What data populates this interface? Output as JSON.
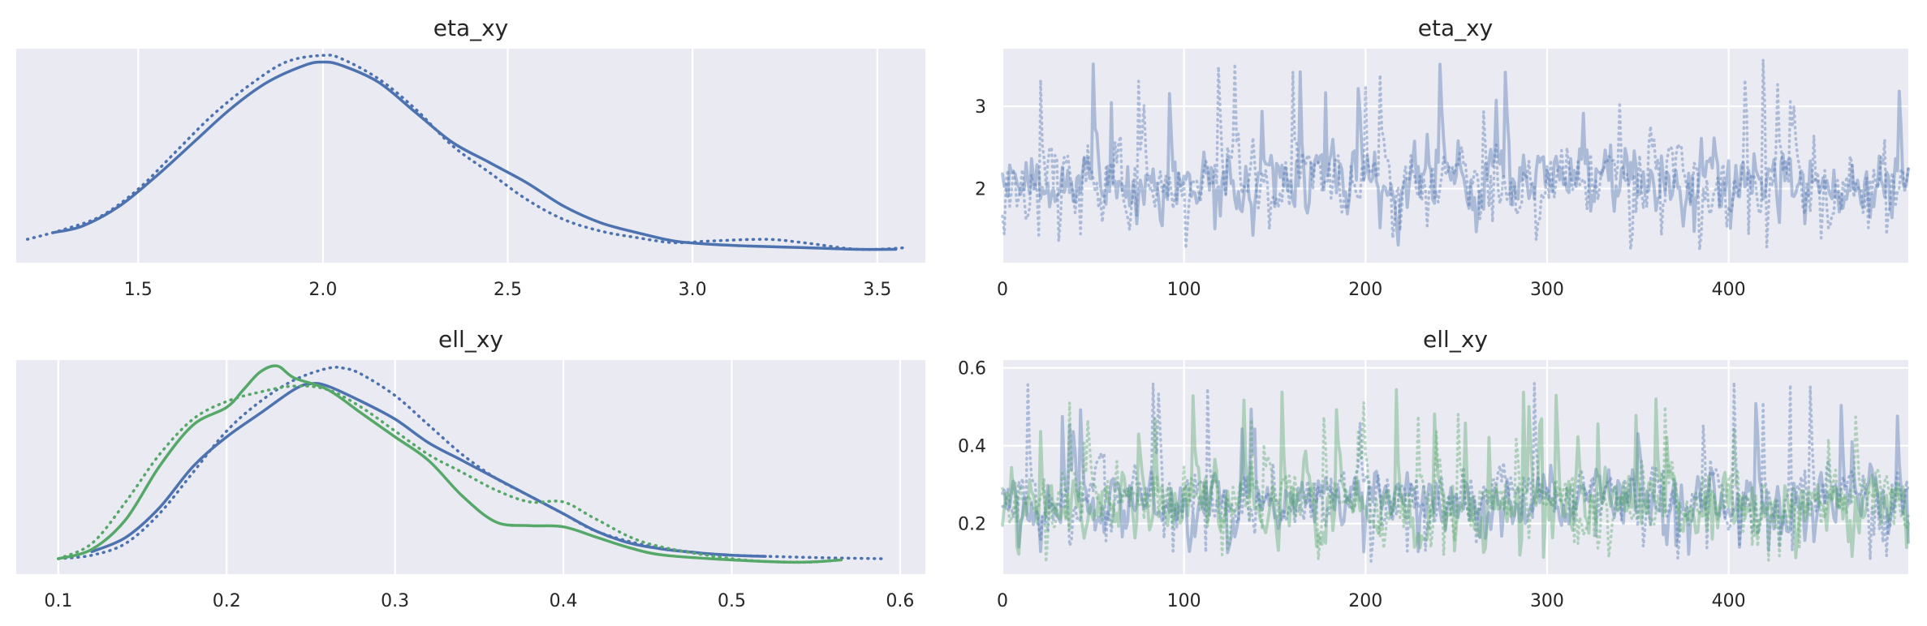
{
  "colors": {
    "blue": "#4c72b0",
    "green": "#55a868",
    "background": "#eaeaf2",
    "grid": "#ffffff"
  },
  "chart_data": [
    {
      "panel": "kde",
      "type": "line",
      "title": "eta_xy",
      "xlim": [
        1.17,
        3.63
      ],
      "ylim": [
        -0.02,
        0.62
      ],
      "xticks": [
        1.5,
        2.0,
        2.5,
        3.0,
        3.5
      ],
      "xtick_labels": [
        "1.5",
        "2.0",
        "2.5",
        "3.0",
        "3.5"
      ],
      "grid": true,
      "series": [
        {
          "color": "#4c72b0",
          "style": "solid",
          "x": [
            1.27,
            1.35,
            1.45,
            1.55,
            1.65,
            1.75,
            1.85,
            1.95,
            2.0,
            2.05,
            2.15,
            2.25,
            2.35,
            2.45,
            2.55,
            2.65,
            2.75,
            2.85,
            2.95,
            3.05,
            3.15,
            3.3,
            3.45,
            3.55
          ],
          "y": [
            0.07,
            0.09,
            0.15,
            0.24,
            0.34,
            0.44,
            0.52,
            0.57,
            0.58,
            0.57,
            0.52,
            0.43,
            0.34,
            0.28,
            0.22,
            0.15,
            0.1,
            0.07,
            0.045,
            0.035,
            0.03,
            0.025,
            0.02,
            0.02
          ]
        },
        {
          "color": "#4c72b0",
          "style": "dotted",
          "x": [
            1.2,
            1.3,
            1.4,
            1.5,
            1.6,
            1.7,
            1.8,
            1.9,
            2.0,
            2.05,
            2.15,
            2.25,
            2.35,
            2.45,
            2.55,
            2.65,
            2.75,
            2.85,
            2.95,
            3.05,
            3.2,
            3.3,
            3.45,
            3.58
          ],
          "y": [
            0.05,
            0.08,
            0.12,
            0.2,
            0.31,
            0.42,
            0.51,
            0.58,
            0.6,
            0.59,
            0.53,
            0.44,
            0.33,
            0.25,
            0.17,
            0.11,
            0.075,
            0.055,
            0.04,
            0.045,
            0.05,
            0.04,
            0.02,
            0.025
          ]
        }
      ]
    },
    {
      "panel": "trace",
      "type": "line",
      "title": "eta_xy",
      "xlim": [
        0,
        499
      ],
      "ylim": [
        1.1,
        3.7
      ],
      "xticks": [
        0,
        100,
        200,
        300,
        400
      ],
      "xtick_labels": [
        "0",
        "100",
        "200",
        "300",
        "400"
      ],
      "yticks": [
        2,
        3
      ],
      "ytick_labels": [
        "2",
        "3"
      ],
      "grid": true,
      "n_draws": 500,
      "chains": [
        {
          "color": "#4c72b0",
          "style": "solid",
          "mean": 2.1,
          "sd": 0.35,
          "min": 1.3,
          "max": 3.55,
          "seed": 11
        },
        {
          "color": "#4c72b0",
          "style": "dotted",
          "mean": 2.05,
          "sd": 0.38,
          "min": 1.25,
          "max": 3.6,
          "seed": 29
        }
      ]
    },
    {
      "panel": "kde",
      "type": "line",
      "title": "ell_xy",
      "xlim": [
        0.075,
        0.615
      ],
      "ylim": [
        -0.6,
        17.5
      ],
      "xticks": [
        0.1,
        0.2,
        0.3,
        0.4,
        0.5,
        0.6
      ],
      "xtick_labels": [
        "0.1",
        "0.2",
        "0.3",
        "0.4",
        "0.5",
        "0.6"
      ],
      "grid": true,
      "series": [
        {
          "color": "#4c72b0",
          "style": "solid",
          "x": [
            0.12,
            0.14,
            0.16,
            0.18,
            0.2,
            0.22,
            0.24,
            0.25,
            0.26,
            0.28,
            0.3,
            0.32,
            0.34,
            0.36,
            0.38,
            0.4,
            0.42,
            0.44,
            0.46,
            0.48,
            0.5,
            0.52
          ],
          "y": [
            1.3,
            2.5,
            5.0,
            8.5,
            11.0,
            13.0,
            15.0,
            15.5,
            15.3,
            14.0,
            12.5,
            10.5,
            9.0,
            7.5,
            6.0,
            4.5,
            3.0,
            2.0,
            1.5,
            1.2,
            1.0,
            0.9
          ]
        },
        {
          "color": "#4c72b0",
          "style": "dotted",
          "x": [
            0.1,
            0.12,
            0.14,
            0.16,
            0.18,
            0.2,
            0.22,
            0.24,
            0.26,
            0.27,
            0.28,
            0.3,
            0.32,
            0.34,
            0.36,
            0.38,
            0.4,
            0.42,
            0.45,
            0.48,
            0.5,
            0.55,
            0.59
          ],
          "y": [
            0.7,
            1.0,
            2.0,
            4.5,
            8.0,
            11.5,
            14.0,
            15.8,
            16.8,
            16.8,
            16.3,
            14.5,
            12.0,
            9.5,
            7.5,
            6.0,
            4.5,
            3.0,
            1.8,
            1.2,
            1.0,
            0.8,
            0.7
          ]
        },
        {
          "color": "#55a868",
          "style": "solid",
          "x": [
            0.1,
            0.12,
            0.14,
            0.16,
            0.18,
            0.2,
            0.21,
            0.22,
            0.23,
            0.24,
            0.26,
            0.28,
            0.3,
            0.32,
            0.34,
            0.36,
            0.38,
            0.4,
            0.42,
            0.44,
            0.46,
            0.5,
            0.54,
            0.565
          ],
          "y": [
            0.7,
            1.5,
            4.0,
            8.5,
            12.0,
            13.5,
            15.0,
            16.5,
            17.0,
            16.0,
            15.0,
            13.0,
            11.0,
            9.0,
            6.0,
            3.8,
            3.5,
            3.4,
            2.5,
            1.6,
            1.0,
            0.6,
            0.4,
            0.6
          ]
        },
        {
          "color": "#55a868",
          "style": "dotted",
          "x": [
            0.1,
            0.12,
            0.14,
            0.16,
            0.18,
            0.2,
            0.22,
            0.24,
            0.26,
            0.28,
            0.3,
            0.32,
            0.34,
            0.36,
            0.38,
            0.4,
            0.42,
            0.45,
            0.5,
            0.54,
            0.565
          ],
          "y": [
            0.7,
            2.0,
            5.5,
            9.5,
            12.5,
            14.0,
            14.8,
            15.3,
            15.0,
            13.5,
            11.5,
            9.5,
            8.0,
            6.5,
            5.5,
            5.5,
            4.0,
            2.0,
            0.7,
            0.4,
            0.6
          ]
        }
      ]
    },
    {
      "panel": "trace",
      "type": "line",
      "title": "ell_xy",
      "xlim": [
        0,
        499
      ],
      "ylim": [
        0.07,
        0.62
      ],
      "xticks": [
        0,
        100,
        200,
        300,
        400
      ],
      "xtick_labels": [
        "0",
        "100",
        "200",
        "300",
        "400"
      ],
      "yticks": [
        0.2,
        0.4,
        0.6
      ],
      "ytick_labels": [
        "0.2",
        "0.4",
        "0.6"
      ],
      "grid": true,
      "n_draws": 500,
      "chains": [
        {
          "color": "#4c72b0",
          "style": "solid",
          "mean": 0.26,
          "sd": 0.06,
          "min": 0.12,
          "max": 0.52,
          "seed": 5
        },
        {
          "color": "#4c72b0",
          "style": "dotted",
          "mean": 0.27,
          "sd": 0.065,
          "min": 0.1,
          "max": 0.59,
          "seed": 17
        },
        {
          "color": "#55a868",
          "style": "solid",
          "mean": 0.25,
          "sd": 0.065,
          "min": 0.11,
          "max": 0.56,
          "seed": 23
        },
        {
          "color": "#55a868",
          "style": "dotted",
          "mean": 0.26,
          "sd": 0.06,
          "min": 0.1,
          "max": 0.52,
          "seed": 41
        }
      ]
    }
  ]
}
